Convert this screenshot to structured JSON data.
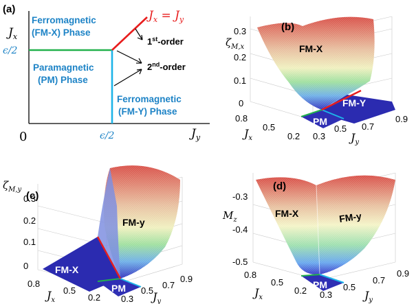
{
  "panels": {
    "a": {
      "label": "(a)",
      "fm_x": [
        "Ferromagnetic",
        "(FM-X) Phase"
      ],
      "pm": [
        "Paramagnetic",
        "(PM) Phase"
      ],
      "fm_y": [
        "Ferromagnetic",
        "(FM-Y) Phase"
      ],
      "diag_label": "J",
      "diag_sub_x": "x",
      "diag_eq": " = J",
      "diag_sub_y": "y",
      "first_order_num": "1",
      "first_order_sup": "st",
      "first_order_rest": "-order",
      "second_order_num": "2",
      "second_order_sup": "nd",
      "second_order_rest": "-order",
      "eps_y": "ϵ/2",
      "eps_x": "ϵ/2",
      "origin": "0",
      "yaxis_main": "J",
      "yaxis_sub": "x",
      "xaxis_main": "J",
      "xaxis_sub": "y"
    },
    "b": {
      "label": "(b)",
      "zlabel_main": "ζ",
      "zlabel_sub": "M,x",
      "zticks": [
        "0.3",
        "0.2",
        "0.1",
        "0"
      ],
      "jx_ticks": [
        "0.8",
        "0.5",
        "0.2"
      ],
      "jy_ticks": [
        "0.3",
        "0.5",
        "0.7",
        "0.9"
      ],
      "jx_main": "J",
      "jx_sub": "x",
      "jy_main": "J",
      "jy_sub": "y",
      "region_fm": "FM-X",
      "region_fm2": "FM-Y",
      "region_pm": "PM"
    },
    "c": {
      "label": "(c)",
      "zlabel_main": "ζ",
      "zlabel_sub": "M,y",
      "zticks": [
        "0.3",
        "0.2",
        "0.1",
        "0"
      ],
      "jx_ticks": [
        "0.8",
        "0.5",
        "0.2"
      ],
      "jy_ticks": [
        "0.3",
        "0.5",
        "0.7",
        "0.9"
      ],
      "jx_main": "J",
      "jx_sub": "x",
      "jy_main": "J",
      "jy_sub": "y",
      "region_fm": "FM-y",
      "region_fm2": "FM-X",
      "region_pm": "PM"
    },
    "d": {
      "label": "(d)",
      "zlabel_main": "M",
      "zlabel_sub": "z",
      "zticks": [
        "-0.3",
        "-0.4",
        "-0.5"
      ],
      "jx_ticks": [
        "0.8",
        "0.5",
        "0.2"
      ],
      "jy_ticks": [
        "0.3",
        "0.5",
        "0.7",
        "0.9"
      ],
      "jx_main": "J",
      "jx_sub": "x",
      "jy_main": "J",
      "jy_sub": "y",
      "region_fm": "FM-X",
      "region_fm2": "FM-y",
      "region_pm": "PM"
    }
  },
  "colors": {
    "phase_text": "#1d83c6",
    "line_green": "#22b14c",
    "line_cyan": "#1db4e8",
    "line_red": "#e81d1d",
    "surface_low": "#2727a8",
    "surface_high": "#d9524a"
  }
}
